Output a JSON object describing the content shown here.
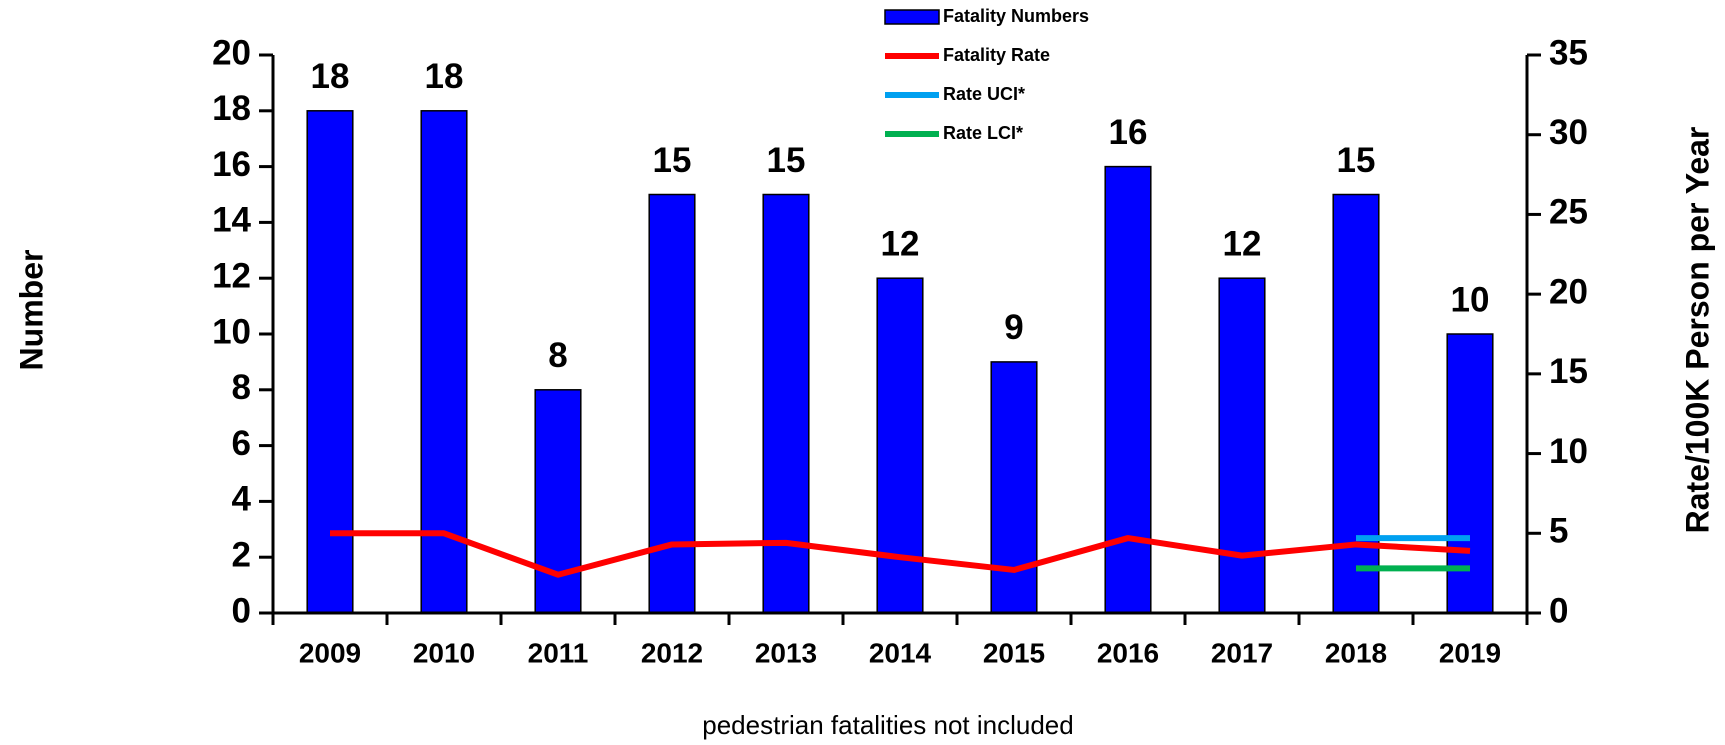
{
  "chart_data": {
    "type": "bar",
    "categories": [
      "2009",
      "2010",
      "2011",
      "2012",
      "2013",
      "2014",
      "2015",
      "2016",
      "2017",
      "2018",
      "2019"
    ],
    "series": [
      {
        "name": "Fatality Numbers",
        "type": "bar",
        "color": "#0000ff",
        "values": [
          18,
          18,
          8,
          15,
          15,
          12,
          9,
          16,
          12,
          15,
          10
        ]
      },
      {
        "name": "Fatality Rate",
        "type": "line",
        "axis": "y2",
        "color": "#ff0000",
        "values": [
          5.0,
          5.0,
          2.4,
          4.3,
          4.4,
          3.5,
          2.7,
          4.7,
          3.6,
          4.3,
          3.9
        ]
      },
      {
        "name": "Rate UCI*",
        "type": "line",
        "axis": "y2",
        "color": "#00a0f0",
        "values": [
          null,
          null,
          null,
          null,
          null,
          null,
          null,
          null,
          null,
          4.7,
          4.7
        ]
      },
      {
        "name": "Rate LCI*",
        "type": "line",
        "axis": "y2",
        "color": "#00b050",
        "values": [
          null,
          null,
          null,
          null,
          null,
          null,
          null,
          null,
          null,
          2.8,
          2.8
        ]
      }
    ],
    "ylabel": "Number",
    "y2label": "Rate/100K Person per Year",
    "ylim": [
      0,
      20
    ],
    "yticks": [
      0,
      2,
      4,
      6,
      8,
      10,
      12,
      14,
      16,
      18,
      20
    ],
    "y2lim": [
      0,
      35
    ],
    "y2ticks": [
      0,
      5,
      10,
      15,
      20,
      25,
      30,
      35
    ],
    "note": "pedestrian fatalities not included",
    "legend": "top"
  }
}
